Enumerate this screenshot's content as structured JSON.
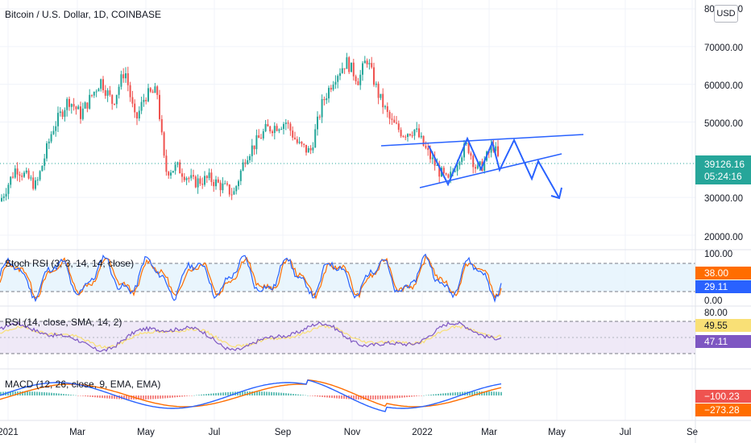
{
  "header": {
    "title": "Bitcoin / U.S. Dollar, 1D, COINBASE",
    "currency_button": "USD"
  },
  "price_axis": {
    "labels": [
      "80000.00",
      "70000.00",
      "60000.00",
      "50000.00",
      "30000.00",
      "20000.00"
    ],
    "values": [
      80000,
      70000,
      60000,
      50000,
      30000,
      20000
    ]
  },
  "last_price": {
    "value": "39126.16",
    "countdown": "05:24:16",
    "color": "#26a69a"
  },
  "time_axis": {
    "labels": [
      "2021",
      "Mar",
      "May",
      "Jul",
      "Sep",
      "Nov",
      "2022",
      "Mar",
      "May",
      "Jul",
      "Se"
    ]
  },
  "stoch_rsi": {
    "title": "Stoch RSI (3, 3, 14, 14, close)",
    "axis_labels": [
      "100.00",
      "0.00"
    ],
    "k_value": "38.00",
    "d_value": "29.11",
    "k_color": "#2962ff",
    "d_color": "#ff6d00",
    "band_color": "#e3f2fd"
  },
  "rsi": {
    "title": "RSI (14, close, SMA, 14, 2)",
    "axis_labels": [
      "80.00"
    ],
    "rsi_value": "49.55",
    "ma_value": "47.11",
    "rsi_color": "#7e57c2",
    "ma_color": "#f9e076",
    "band_color": "#ede7f6"
  },
  "macd": {
    "title": "MACD (12, 26, close, 9, EMA, EMA)",
    "macd_value": "−100.23",
    "signal_value": "−273.28",
    "macd_color": "#2962ff",
    "signal_color": "#ff6d00"
  },
  "chart_data": {
    "type": "candlestick",
    "x": [
      "2021-01",
      "2021-02",
      "2021-03",
      "2021-04",
      "2021-05",
      "2021-06",
      "2021-07",
      "2021-08",
      "2021-09",
      "2021-10",
      "2021-11",
      "2021-12",
      "2022-01",
      "2022-02",
      "2022-03"
    ],
    "close": [
      33000,
      45000,
      58000,
      57000,
      37000,
      35000,
      41000,
      47000,
      43000,
      61000,
      57000,
      46000,
      38000,
      43000,
      39126
    ],
    "ylim": [
      15000,
      82000
    ],
    "colors": {
      "up": "#26a69a",
      "down": "#ef5350"
    }
  }
}
